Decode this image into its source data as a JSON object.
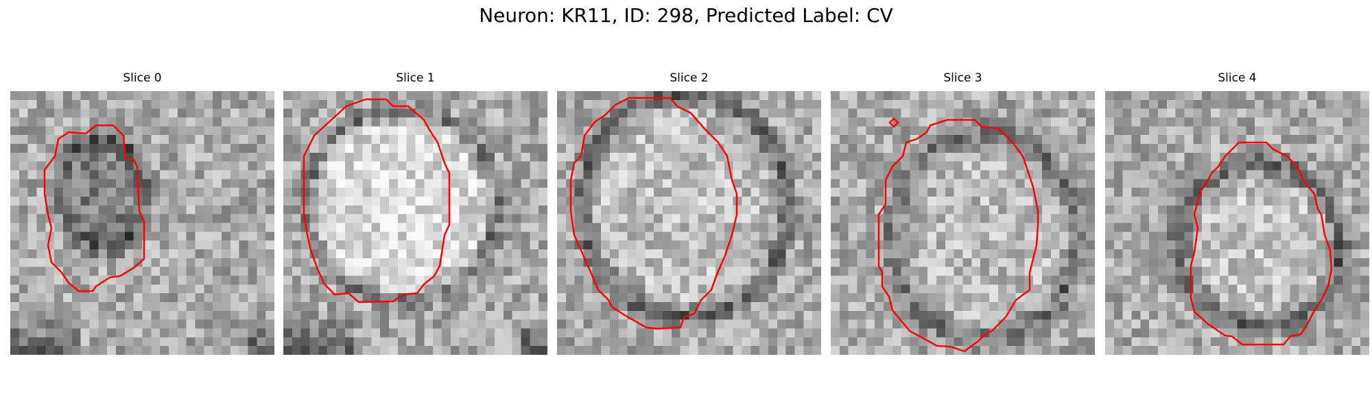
{
  "figure": {
    "title": "Neuron: KR11, ID: 298, Predicted Label: CV"
  },
  "colors": {
    "contour": "#ff0000",
    "background": "#ffffff"
  },
  "panels": [
    {
      "title": "Slice 0"
    },
    {
      "title": "Slice 1"
    },
    {
      "title": "Slice 2"
    },
    {
      "title": "Slice 3"
    },
    {
      "title": "Slice 4"
    }
  ]
}
